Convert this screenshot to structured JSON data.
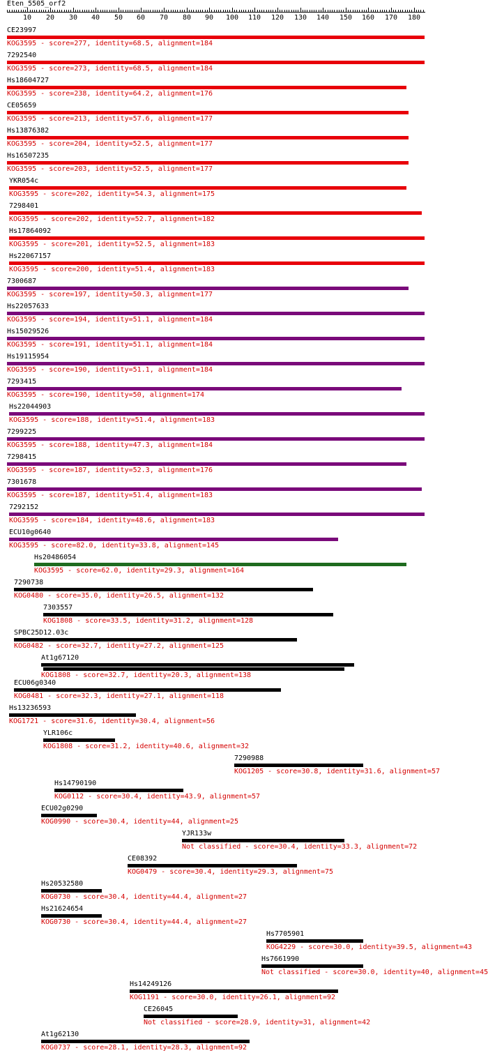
{
  "query": {
    "name": "Eten_5505_orf2",
    "length": 184
  },
  "scale": {
    "labels": [
      "10",
      "20",
      "30",
      "40",
      "50",
      "60",
      "70",
      "80",
      "90",
      "100",
      "110",
      "120",
      "130",
      "140",
      "150",
      "160",
      "170",
      "180"
    ]
  },
  "colors": {
    "text": "#000000",
    "desc": "#d40000",
    "red": "#e8000a",
    "purple": "#7a0a7a",
    "green": "#1f6b1f",
    "black": "#000000"
  },
  "hits": [
    {
      "name": "CE23997",
      "desc": "KOG3595 - score=277, identity=68.5, alignment=184",
      "color": "red",
      "start": 1,
      "end": 184
    },
    {
      "name": "7292540",
      "desc": "KOG3595 - score=273, identity=68.5, alignment=184",
      "color": "red",
      "start": 1,
      "end": 184
    },
    {
      "name": "Hs18604727",
      "desc": "KOG3595 - score=238, identity=64.2, alignment=176",
      "color": "red",
      "start": 1,
      "end": 176
    },
    {
      "name": "CE05659",
      "desc": "KOG3595 - score=213, identity=57.6, alignment=177",
      "color": "red",
      "start": 1,
      "end": 177
    },
    {
      "name": "Hs13876382",
      "desc": "KOG3595 - score=204, identity=52.5, alignment=177",
      "color": "red",
      "start": 1,
      "end": 177
    },
    {
      "name": "Hs16507235",
      "desc": "KOG3595 - score=203, identity=52.5, alignment=177",
      "color": "red",
      "start": 1,
      "end": 177
    },
    {
      "name": "YKR054c",
      "desc": "KOG3595 - score=202, identity=54.3, alignment=175",
      "color": "red",
      "start": 2,
      "end": 176
    },
    {
      "name": "7298401",
      "desc": "KOG3595 - score=202, identity=52.7, alignment=182",
      "color": "red",
      "start": 2,
      "end": 183
    },
    {
      "name": "Hs17864092",
      "desc": "KOG3595 - score=201, identity=52.5, alignment=183",
      "color": "red",
      "start": 2,
      "end": 184
    },
    {
      "name": "Hs22067157",
      "desc": "KOG3595 - score=200, identity=51.4, alignment=183",
      "color": "red",
      "start": 2,
      "end": 184
    },
    {
      "name": "7300687",
      "desc": "KOG3595 - score=197, identity=50.3, alignment=177",
      "color": "purple",
      "start": 1,
      "end": 177
    },
    {
      "name": "Hs22057633",
      "desc": "KOG3595 - score=194, identity=51.1, alignment=184",
      "color": "purple",
      "start": 1,
      "end": 184
    },
    {
      "name": "Hs15029526",
      "desc": "KOG3595 - score=191, identity=51.1, alignment=184",
      "color": "purple",
      "start": 1,
      "end": 184
    },
    {
      "name": "Hs19115954",
      "desc": "KOG3595 - score=190, identity=51.1, alignment=184",
      "color": "purple",
      "start": 1,
      "end": 184
    },
    {
      "name": "7293415",
      "desc": "KOG3595 - score=190, identity=50, alignment=174",
      "color": "purple",
      "start": 1,
      "end": 174
    },
    {
      "name": "Hs22044903",
      "desc": "KOG3595 - score=188, identity=51.4, alignment=183",
      "color": "purple",
      "start": 2,
      "end": 184
    },
    {
      "name": "7299225",
      "desc": "KOG3595 - score=188, identity=47.3, alignment=184",
      "color": "purple",
      "start": 1,
      "end": 184
    },
    {
      "name": "7298415",
      "desc": "KOG3595 - score=187, identity=52.3, alignment=176",
      "color": "purple",
      "start": 1,
      "end": 176
    },
    {
      "name": "7301678",
      "desc": "KOG3595 - score=187, identity=51.4, alignment=183",
      "color": "purple",
      "start": 1,
      "end": 183
    },
    {
      "name": "7292152",
      "desc": "KOG3595 - score=184, identity=48.6, alignment=183",
      "color": "purple",
      "start": 2,
      "end": 184
    },
    {
      "name": "ECU10g0640",
      "desc": "KOG3595 - score=82.0, identity=33.8, alignment=145",
      "color": "purple",
      "start": 2,
      "end": 146
    },
    {
      "name": "Hs20486054",
      "desc": "KOG3595 - score=62.0, identity=29.3, alignment=164",
      "color": "green",
      "start": 13,
      "end": 176
    },
    {
      "name": "7290738",
      "desc": "KOG0480 - score=35.0, identity=26.5, alignment=132",
      "color": "black",
      "start": 4,
      "end": 135
    },
    {
      "name": "7303557",
      "desc": "KOG1808 - score=33.5, identity=31.2, alignment=128",
      "color": "black",
      "start": 17,
      "end": 144
    },
    {
      "name": "SPBC25D12.03c",
      "desc": "KOG0482 - score=32.7, identity=27.2, alignment=125",
      "color": "black",
      "start": 4,
      "end": 128
    },
    {
      "name": "At1g67120",
      "desc": "KOG1808 - score=32.7, identity=20.3, alignment=138",
      "color": "black",
      "start": 16,
      "end": 153,
      "extra": [
        {
          "start": 17,
          "end": 149
        }
      ]
    },
    {
      "name": "ECU06g0340",
      "desc": "KOG0481 - score=32.3, identity=27.1, alignment=118",
      "color": "black",
      "start": 4,
      "end": 121
    },
    {
      "name": "Hs13236593",
      "desc": "KOG1721 - score=31.6, identity=30.4, alignment=56",
      "color": "black",
      "start": 2,
      "end": 57
    },
    {
      "name": "YLR106c",
      "desc": "KOG1808 - score=31.2, identity=40.6, alignment=32",
      "color": "black",
      "start": 17,
      "end": 48
    },
    {
      "name": "7290988",
      "desc": "KOG1205 - score=30.8, identity=31.6, alignment=57",
      "color": "black",
      "start": 101,
      "end": 157
    },
    {
      "name": "Hs14790190",
      "desc": "KOG0112 - score=30.4, identity=43.9, alignment=57",
      "color": "black",
      "start": 22,
      "end": 78
    },
    {
      "name": "ECU02g0290",
      "desc": "KOG0990 - score=30.4, identity=44, alignment=25",
      "color": "black",
      "start": 16,
      "end": 40
    },
    {
      "name": "YJR133w",
      "desc": "Not classified - score=30.4, identity=33.3, alignment=72",
      "color": "black",
      "start": 78,
      "end": 149
    },
    {
      "name": "CE08392",
      "desc": "KOG0479 - score=30.4, identity=29.3, alignment=75",
      "color": "black",
      "start": 54,
      "end": 128
    },
    {
      "name": "Hs20532580",
      "desc": "KOG0730 - score=30.4, identity=44.4, alignment=27",
      "color": "black",
      "start": 16,
      "end": 42
    },
    {
      "name": "Hs21624654",
      "desc": "KOG0730 - score=30.4, identity=44.4, alignment=27",
      "color": "black",
      "start": 16,
      "end": 42
    },
    {
      "name": "Hs7705901",
      "desc": "KOG4229 - score=30.0, identity=39.5, alignment=43",
      "color": "black",
      "start": 115,
      "end": 157
    },
    {
      "name": "Hs7661990",
      "desc": "Not classified - score=30.0, identity=40, alignment=45",
      "color": "black",
      "start": 113,
      "end": 157
    },
    {
      "name": "Hs14249126",
      "desc": "KOG1191 - score=30.0, identity=26.1, alignment=92",
      "color": "black",
      "start": 55,
      "end": 146
    },
    {
      "name": "CE26045",
      "desc": "Not classified - score=28.9, identity=31, alignment=42",
      "color": "black",
      "start": 61,
      "end": 102
    },
    {
      "name": "At1g62130",
      "desc": "KOG0737 - score=28.1, identity=28.3, alignment=92",
      "color": "black",
      "start": 16,
      "end": 107
    }
  ]
}
